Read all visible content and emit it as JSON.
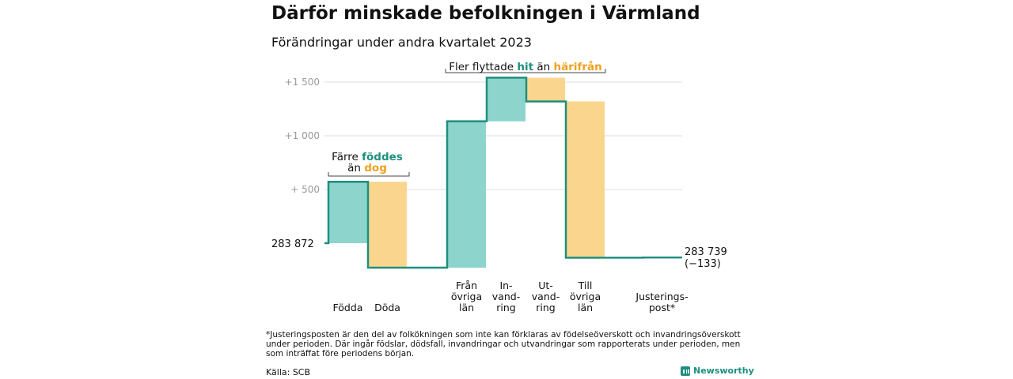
{
  "title": "Därför minskade befolkningen i Värmland",
  "subtitle": "Förändringar under andra kvartalet 2023",
  "chart_data": {
    "type": "waterfall",
    "start": {
      "value": 283872,
      "label": "283   872"
    },
    "end": {
      "value": 283739,
      "label": "283 739",
      "change_label": "(−133)"
    },
    "y_ticks": [
      {
        "offset": 500,
        "label": "+   500"
      },
      {
        "offset": 1000,
        "label": "+1   000"
      },
      {
        "offset": 1500,
        "label": "+1   500"
      }
    ],
    "ylim": [
      -250,
      1580
    ],
    "grid": true,
    "steps": [
      {
        "category": [
          "Födda"
        ],
        "change": 572,
        "kind": "in"
      },
      {
        "category": [
          "Döda"
        ],
        "change": -800,
        "kind": "out"
      },
      {
        "category": [
          "Från",
          "övriga",
          "län"
        ],
        "change": 1363,
        "kind": "in"
      },
      {
        "category": [
          "In-",
          "vand-",
          "ring"
        ],
        "change": 406,
        "kind": "in"
      },
      {
        "category": [
          "Ut-",
          "vand-",
          "ring"
        ],
        "change": -221,
        "kind": "out"
      },
      {
        "category": [
          "Till",
          "övriga",
          "län"
        ],
        "change": -1455,
        "kind": "out"
      },
      {
        "category": [
          "Justerings-",
          "post*"
        ],
        "change": 2,
        "kind": "line"
      }
    ],
    "annotations": [
      {
        "parts": [
          {
            "text": "Färre ",
            "style": "plain"
          },
          {
            "text": "föddes",
            "style": "teal"
          }
        ],
        "line2": [
          {
            "text": "än ",
            "style": "plain"
          },
          {
            "text": "dog",
            "style": "orange"
          }
        ]
      },
      {
        "parts": [
          {
            "text": "Fler flyttade ",
            "style": "plain"
          },
          {
            "text": "hit",
            "style": "teal"
          },
          {
            "text": "  än ",
            "style": "plain"
          },
          {
            "text": "härifrån",
            "style": "orange"
          }
        ]
      }
    ],
    "colors": {
      "in": "#8dd5cc",
      "out": "#fad58d",
      "line": "#1e8f7e",
      "grid": "#dddddd",
      "tick": "#999999",
      "teal_text": "#1e8f7e",
      "orange_text": "#f0a020"
    }
  },
  "footnote": "*Justeringsposten är den del av folkökningen som inte kan förklaras av födelseöverskott och invandringsöverskott under perioden. Där ingår födslar, dödsfall, invandringar och utvandringar som rapporterats under perioden, men som inträffat före periodens början.",
  "source": "Källa: SCB",
  "brand": "Newsworthy"
}
